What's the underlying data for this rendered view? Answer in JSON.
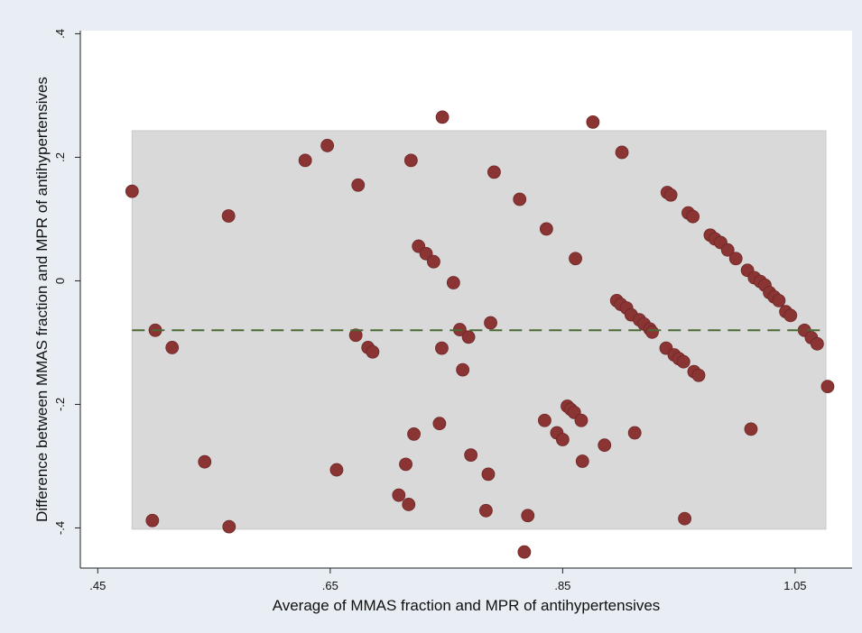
{
  "colors": {
    "outer_background": "#e8eef3",
    "plot_background": "#ffffff",
    "limits_band": "#d9d9d9",
    "limits_band_edge": "#c9c9c9",
    "points": "#8b3434",
    "mean_line": "#4a6a34"
  },
  "chart_data": {
    "type": "scatter",
    "title": "",
    "xlabel": "Average of MMAS fraction and MPR of antihypertensives",
    "ylabel": "Difference between MMAS fraction and MPR of antihypertensives",
    "xlim": [
      0.435,
      1.099
    ],
    "ylim": [
      -0.465,
      0.405
    ],
    "xticks": [
      0.45,
      0.65,
      0.85,
      1.05
    ],
    "xtick_labels": [
      ".45",
      ".65",
      ".85",
      "1.05"
    ],
    "yticks": [
      -0.4,
      -0.2,
      0,
      0.2,
      0.4
    ],
    "ytick_labels": [
      "-.4",
      "-.2",
      "0",
      ".2",
      ".4"
    ],
    "grid": false,
    "legend": "none",
    "mean_difference": -0.08,
    "limits_of_agreement": {
      "upper": 0.243,
      "lower": -0.402,
      "x_range": [
        0.4795,
        1.0765
      ]
    },
    "points": [
      [
        0.4795,
        0.145
      ],
      [
        0.497,
        -0.388
      ],
      [
        0.4995,
        -0.08
      ],
      [
        0.514,
        -0.108
      ],
      [
        0.542,
        -0.293
      ],
      [
        0.5625,
        0.105
      ],
      [
        0.563,
        -0.398
      ],
      [
        0.6285,
        0.195
      ],
      [
        0.6475,
        0.219
      ],
      [
        0.6555,
        -0.306
      ],
      [
        0.672,
        -0.088
      ],
      [
        0.674,
        0.155
      ],
      [
        0.6825,
        -0.108
      ],
      [
        0.6865,
        -0.115
      ],
      [
        0.709,
        -0.347
      ],
      [
        0.715,
        -0.297
      ],
      [
        0.7175,
        -0.362
      ],
      [
        0.7195,
        0.195
      ],
      [
        0.722,
        -0.248
      ],
      [
        0.726,
        0.056
      ],
      [
        0.7325,
        0.044
      ],
      [
        0.739,
        0.031
      ],
      [
        0.744,
        -0.231
      ],
      [
        0.746,
        -0.109
      ],
      [
        0.7465,
        0.265
      ],
      [
        0.756,
        -0.003
      ],
      [
        0.7615,
        -0.079
      ],
      [
        0.764,
        -0.144
      ],
      [
        0.769,
        -0.091
      ],
      [
        0.771,
        -0.282
      ],
      [
        0.784,
        -0.372
      ],
      [
        0.786,
        -0.313
      ],
      [
        0.788,
        -0.068
      ],
      [
        0.791,
        0.176
      ],
      [
        0.813,
        0.132
      ],
      [
        0.817,
        -0.439
      ],
      [
        0.82,
        -0.38
      ],
      [
        0.8345,
        -0.226
      ],
      [
        0.836,
        0.084
      ],
      [
        0.845,
        -0.246
      ],
      [
        0.85,
        -0.257
      ],
      [
        0.854,
        -0.203
      ],
      [
        0.857,
        -0.208
      ],
      [
        0.86,
        -0.213
      ],
      [
        0.861,
        0.036
      ],
      [
        0.866,
        -0.226
      ],
      [
        0.867,
        -0.292
      ],
      [
        0.876,
        0.257
      ],
      [
        0.886,
        -0.266
      ],
      [
        0.8965,
        -0.032
      ],
      [
        0.9,
        -0.038
      ],
      [
        0.901,
        0.208
      ],
      [
        0.905,
        -0.044
      ],
      [
        0.909,
        -0.055
      ],
      [
        0.912,
        -0.246
      ],
      [
        0.916,
        -0.063
      ],
      [
        0.92,
        -0.07
      ],
      [
        0.925,
        -0.078
      ],
      [
        0.927,
        -0.083
      ],
      [
        0.939,
        -0.109
      ],
      [
        0.94,
        0.143
      ],
      [
        0.943,
        0.139
      ],
      [
        0.946,
        -0.12
      ],
      [
        0.95,
        -0.126
      ],
      [
        0.954,
        -0.131
      ],
      [
        0.955,
        -0.385
      ],
      [
        0.958,
        0.11
      ],
      [
        0.962,
        0.104
      ],
      [
        0.963,
        -0.147
      ],
      [
        0.967,
        -0.153
      ],
      [
        0.977,
        0.074
      ],
      [
        0.981,
        0.068
      ],
      [
        0.986,
        0.062
      ],
      [
        0.992,
        0.05
      ],
      [
        0.999,
        0.036
      ],
      [
        1.009,
        0.017
      ],
      [
        1.012,
        -0.24
      ],
      [
        1.015,
        0.005
      ],
      [
        1.02,
        -0.001
      ],
      [
        1.024,
        -0.007
      ],
      [
        1.028,
        -0.019
      ],
      [
        1.032,
        -0.026
      ],
      [
        1.036,
        -0.032
      ],
      [
        1.042,
        -0.05
      ],
      [
        1.046,
        -0.056
      ],
      [
        1.058,
        -0.08
      ],
      [
        1.064,
        -0.092
      ],
      [
        1.069,
        -0.102
      ],
      [
        1.078,
        -0.171
      ]
    ]
  }
}
